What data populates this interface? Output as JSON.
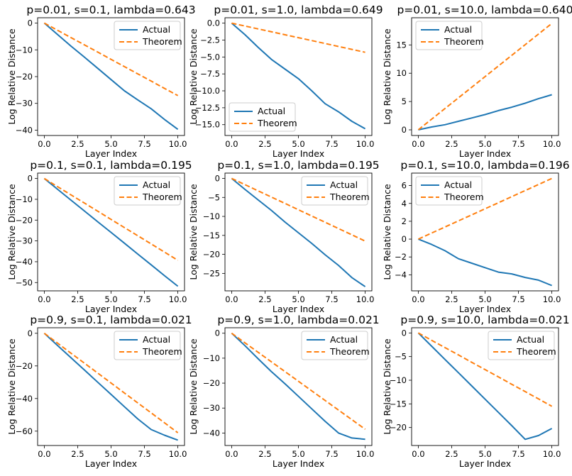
{
  "figure": {
    "legend_actual": "Actual",
    "legend_theorem": "Theorem"
  },
  "colors": {
    "actual": "#1f77b4",
    "theorem": "#ff7f0e"
  },
  "chart_data": [
    {
      "type": "line",
      "title": "p=0.01, s=0.1, lambda=0.643",
      "xlabel": "Layer Index",
      "ylabel": "Log Relative Distance",
      "xlim": [
        -0.5,
        10.5
      ],
      "ylim": [
        -42,
        2
      ],
      "xticks": [
        0.0,
        2.5,
        5.0,
        7.5,
        10.0
      ],
      "xticklabels": [
        "0.0",
        "2.5",
        "5.0",
        "7.5",
        "10.0"
      ],
      "yticks": [
        0,
        -10,
        -20,
        -30,
        -40
      ],
      "yticklabels": [
        "0",
        "−10",
        "−20",
        "−30",
        "−40"
      ],
      "legend_loc": "top-right",
      "x": [
        0,
        1,
        2,
        3,
        4,
        5,
        6,
        7,
        8,
        9,
        10
      ],
      "series": [
        {
          "name": "Actual",
          "values": [
            0,
            -4.3,
            -8.6,
            -12.7,
            -16.9,
            -21.1,
            -25.3,
            -28.7,
            -32.0,
            -36.0,
            -39.7
          ]
        },
        {
          "name": "Theorem",
          "values": [
            0,
            -2.71,
            -5.42,
            -8.13,
            -10.84,
            -13.55,
            -16.26,
            -18.97,
            -21.68,
            -24.39,
            -27.1
          ]
        }
      ]
    },
    {
      "type": "line",
      "title": "p=0.01, s=1.0, lambda=0.649",
      "xlabel": "Layer Index",
      "ylabel": "Log Relative Distance",
      "xlim": [
        -0.5,
        10.5
      ],
      "ylim": [
        -16.6,
        0.8
      ],
      "xticks": [
        0.0,
        2.5,
        5.0,
        7.5,
        10.0
      ],
      "xticklabels": [
        "0.0",
        "2.5",
        "5.0",
        "7.5",
        "10.0"
      ],
      "yticks": [
        0,
        -2.5,
        -5,
        -7.5,
        -10,
        -12.5,
        -15
      ],
      "yticklabels": [
        "0.0",
        "−2.5",
        "−5.0",
        "−7.5",
        "−10.0",
        "−12.5",
        "−15.0"
      ],
      "legend_loc": "bottom-left",
      "x": [
        0,
        1,
        2,
        3,
        4,
        5,
        6,
        7,
        8,
        9,
        10
      ],
      "series": [
        {
          "name": "Actual",
          "values": [
            0,
            -1.7,
            -3.6,
            -5.4,
            -6.8,
            -8.2,
            -10.0,
            -11.9,
            -13.1,
            -14.5,
            -15.6
          ]
        },
        {
          "name": "Theorem",
          "values": [
            0,
            -0.43,
            -0.86,
            -1.29,
            -1.72,
            -2.15,
            -2.58,
            -3.01,
            -3.44,
            -3.87,
            -4.3
          ]
        }
      ]
    },
    {
      "type": "line",
      "title": "p=0.01, s=10.0, lambda=0.640",
      "xlabel": "Layer Index",
      "ylabel": "Log Relative Distance",
      "xlim": [
        -0.5,
        10.5
      ],
      "ylim": [
        -1.0,
        19.8
      ],
      "xticks": [
        0.0,
        2.5,
        5.0,
        7.5,
        10.0
      ],
      "xticklabels": [
        "0.0",
        "2.5",
        "5.0",
        "7.5",
        "10.0"
      ],
      "yticks": [
        0,
        5,
        10,
        15
      ],
      "yticklabels": [
        "0",
        "5",
        "10",
        "15"
      ],
      "legend_loc": "top-left",
      "x": [
        0,
        1,
        2,
        3,
        4,
        5,
        6,
        7,
        8,
        9,
        10
      ],
      "series": [
        {
          "name": "Actual",
          "values": [
            0,
            0.5,
            0.9,
            1.5,
            2.1,
            2.7,
            3.4,
            4.0,
            4.7,
            5.5,
            6.2
          ]
        },
        {
          "name": "Theorem",
          "values": [
            0,
            1.88,
            3.76,
            5.64,
            7.52,
            9.4,
            11.28,
            13.16,
            15.04,
            16.92,
            18.8
          ]
        }
      ]
    },
    {
      "type": "line",
      "title": "p=0.1, s=0.1, lambda=0.195",
      "xlabel": "Layer Index",
      "ylabel": "Log Relative Distance",
      "xlim": [
        -0.5,
        10.5
      ],
      "ylim": [
        -54,
        2.6
      ],
      "xticks": [
        0.0,
        2.5,
        5.0,
        7.5,
        10.0
      ],
      "xticklabels": [
        "0.0",
        "2.5",
        "5.0",
        "7.5",
        "10.0"
      ],
      "yticks": [
        0,
        -10,
        -20,
        -30,
        -40,
        -50
      ],
      "yticklabels": [
        "0",
        "−10",
        "−20",
        "−30",
        "−40",
        "−50"
      ],
      "legend_loc": "top-right",
      "x": [
        0,
        1,
        2,
        3,
        4,
        5,
        6,
        7,
        8,
        9,
        10
      ],
      "series": [
        {
          "name": "Actual",
          "values": [
            0,
            -5.2,
            -10.4,
            -15.6,
            -20.8,
            -25.9,
            -31.1,
            -36.3,
            -41.5,
            -46.7,
            -51.8
          ]
        },
        {
          "name": "Theorem",
          "values": [
            0,
            -3.93,
            -7.86,
            -11.79,
            -15.72,
            -19.65,
            -23.58,
            -27.51,
            -31.44,
            -35.37,
            -39.3
          ]
        }
      ]
    },
    {
      "type": "line",
      "title": "p=0.1, s=1.0, lambda=0.195",
      "xlabel": "Layer Index",
      "ylabel": "Log Relative Distance",
      "xlim": [
        -0.5,
        10.5
      ],
      "ylim": [
        -29.6,
        1.4
      ],
      "xticks": [
        0.0,
        2.5,
        5.0,
        7.5,
        10.0
      ],
      "xticklabels": [
        "0.0",
        "2.5",
        "5.0",
        "7.5",
        "10.0"
      ],
      "yticks": [
        0,
        -5,
        -10,
        -15,
        -20,
        -25
      ],
      "yticklabels": [
        "0",
        "−5",
        "−10",
        "−15",
        "−20",
        "−25"
      ],
      "legend_loc": "top-right",
      "x": [
        0,
        1,
        2,
        3,
        4,
        5,
        6,
        7,
        8,
        9,
        10
      ],
      "series": [
        {
          "name": "Actual",
          "values": [
            0,
            -2.9,
            -5.7,
            -8.5,
            -11.5,
            -14.3,
            -17.1,
            -20.1,
            -22.9,
            -26.1,
            -28.5
          ]
        },
        {
          "name": "Theorem",
          "values": [
            0,
            -1.65,
            -3.3,
            -4.95,
            -6.6,
            -8.25,
            -9.9,
            -11.55,
            -13.2,
            -14.85,
            -16.5
          ]
        }
      ]
    },
    {
      "type": "line",
      "title": "p=0.1, s=10.0, lambda=0.196",
      "xlabel": "Layer Index",
      "ylabel": "Log Relative Distance",
      "xlim": [
        -0.5,
        10.5
      ],
      "ylim": [
        -5.8,
        7.4
      ],
      "xticks": [
        0.0,
        2.5,
        5.0,
        7.5,
        10.0
      ],
      "xticklabels": [
        "0.0",
        "2.5",
        "5.0",
        "7.5",
        "10.0"
      ],
      "yticks": [
        6,
        4,
        2,
        0,
        -2,
        -4
      ],
      "yticklabels": [
        "6",
        "4",
        "2",
        "0",
        "−2",
        "−4"
      ],
      "legend_loc": "top-left",
      "x": [
        0,
        1,
        2,
        3,
        4,
        5,
        6,
        7,
        8,
        9,
        10
      ],
      "series": [
        {
          "name": "Actual",
          "values": [
            0,
            -0.6,
            -1.3,
            -2.2,
            -2.7,
            -3.2,
            -3.7,
            -3.9,
            -4.3,
            -4.6,
            -5.2
          ]
        },
        {
          "name": "Theorem",
          "values": [
            0,
            0.68,
            1.36,
            2.04,
            2.72,
            3.4,
            4.08,
            4.76,
            5.44,
            6.12,
            6.8
          ]
        }
      ]
    },
    {
      "type": "line",
      "title": "p=0.9, s=0.1, lambda=0.021",
      "xlabel": "Layer Index",
      "ylabel": "Log Relative Distance",
      "xlim": [
        -0.5,
        10.5
      ],
      "ylim": [
        -68.8,
        3.4
      ],
      "xticks": [
        0.0,
        2.5,
        5.0,
        7.5,
        10.0
      ],
      "xticklabels": [
        "0.0",
        "2.5",
        "5.0",
        "7.5",
        "10.0"
      ],
      "yticks": [
        0,
        -20,
        -40,
        -60
      ],
      "yticklabels": [
        "0",
        "−20",
        "−40",
        "−60"
      ],
      "legend_loc": "top-right",
      "x": [
        0,
        1,
        2,
        3,
        4,
        5,
        6,
        7,
        8,
        9,
        10
      ],
      "series": [
        {
          "name": "Actual",
          "values": [
            0,
            -7.5,
            -15.0,
            -22.5,
            -30.0,
            -37.5,
            -45.0,
            -52.5,
            -59.0,
            -62.5,
            -65.5
          ]
        },
        {
          "name": "Theorem",
          "values": [
            0,
            -6.1,
            -12.2,
            -18.3,
            -24.4,
            -30.5,
            -36.6,
            -42.7,
            -48.8,
            -54.9,
            -61.0
          ]
        }
      ]
    },
    {
      "type": "line",
      "title": "p=0.9, s=1.0, lambda=0.021",
      "xlabel": "Layer Index",
      "ylabel": "Log Relative Distance",
      "xlim": [
        -0.5,
        10.5
      ],
      "ylim": [
        -45,
        2.2
      ],
      "xticks": [
        0.0,
        2.5,
        5.0,
        7.5,
        10.0
      ],
      "xticklabels": [
        "0.0",
        "2.5",
        "5.0",
        "7.5",
        "10.0"
      ],
      "yticks": [
        0,
        -10,
        -20,
        -30,
        -40
      ],
      "yticklabels": [
        "0",
        "−10",
        "−20",
        "−30",
        "−40"
      ],
      "legend_loc": "top-right",
      "x": [
        0,
        1,
        2,
        3,
        4,
        5,
        6,
        7,
        8,
        9,
        10
      ],
      "series": [
        {
          "name": "Actual",
          "values": [
            0,
            -5.0,
            -10.3,
            -15.5,
            -20.3,
            -25.3,
            -30.3,
            -35.3,
            -40.0,
            -42.0,
            -42.5
          ]
        },
        {
          "name": "Theorem",
          "values": [
            0,
            -3.85,
            -7.7,
            -11.55,
            -15.4,
            -19.25,
            -23.1,
            -26.95,
            -30.8,
            -34.65,
            -38.5
          ]
        }
      ]
    },
    {
      "type": "line",
      "title": "p=0.9, s=10.0, lambda=0.021",
      "xlabel": "Layer Index",
      "ylabel": "Log Relative Distance",
      "xlim": [
        -0.5,
        10.5
      ],
      "ylim": [
        -23.8,
        1.1
      ],
      "xticks": [
        0.0,
        2.5,
        5.0,
        7.5,
        10.0
      ],
      "xticklabels": [
        "0.0",
        "2.5",
        "5.0",
        "7.5",
        "10.0"
      ],
      "yticks": [
        0,
        -5,
        -10,
        -15,
        -20
      ],
      "yticklabels": [
        "0",
        "−5",
        "−10",
        "−15",
        "−20"
      ],
      "legend_loc": "top-right",
      "x": [
        0,
        1,
        2,
        3,
        4,
        5,
        6,
        7,
        8,
        9,
        10
      ],
      "series": [
        {
          "name": "Actual",
          "values": [
            0,
            -2.8,
            -5.6,
            -8.4,
            -11.2,
            -14.0,
            -16.8,
            -19.6,
            -22.5,
            -21.7,
            -20.2
          ]
        },
        {
          "name": "Theorem",
          "values": [
            0,
            -1.55,
            -3.1,
            -4.65,
            -6.2,
            -7.75,
            -9.3,
            -10.85,
            -12.4,
            -13.95,
            -15.5
          ]
        }
      ]
    }
  ]
}
